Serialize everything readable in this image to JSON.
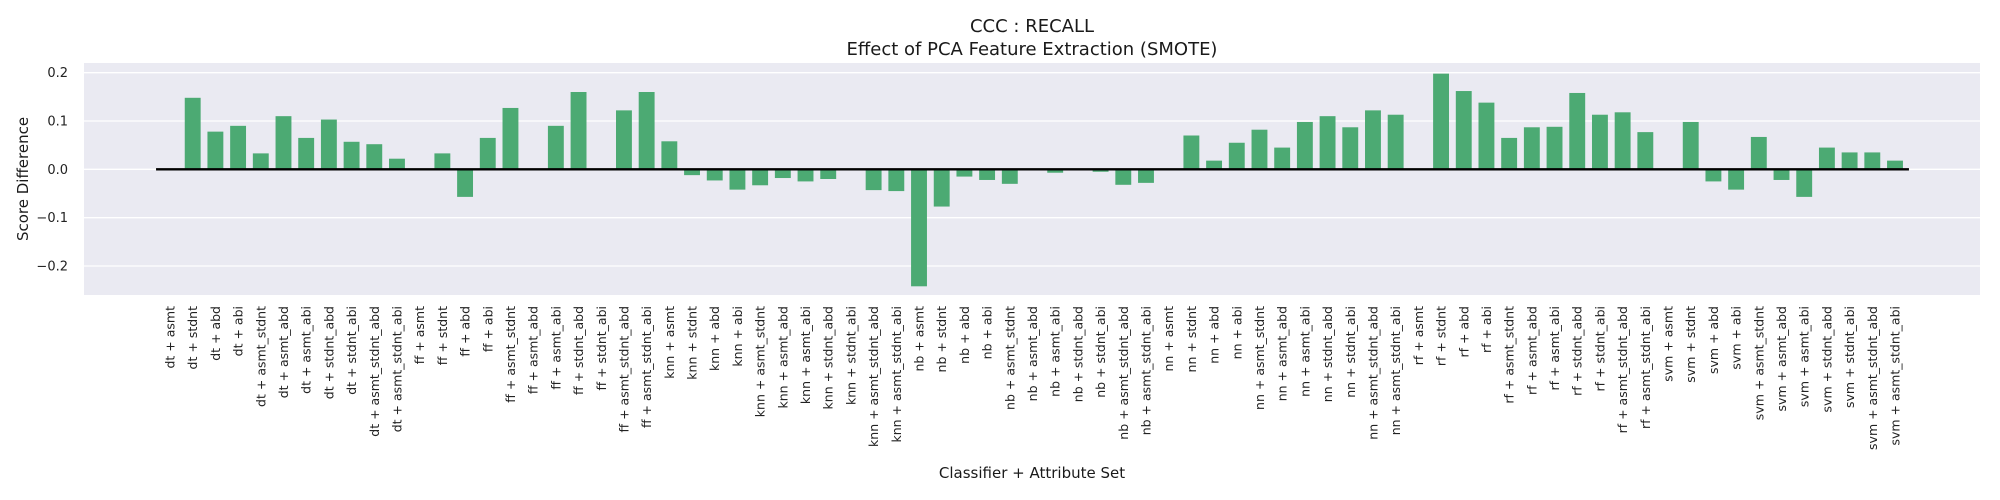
{
  "chart_data": {
    "type": "bar",
    "title": "CCC : RECALL",
    "subtitle": "Effect of PCA Feature Extraction (SMOTE)",
    "xlabel": "Classifier + Attribute Set",
    "ylabel": "Score Difference",
    "ylim": [
      -0.26,
      0.22
    ],
    "yticks": [
      -0.2,
      -0.1,
      0.0,
      0.1,
      0.2
    ],
    "ytick_labels": [
      "−0.2",
      "−0.1",
      "0.0",
      "0.1",
      "0.2"
    ],
    "grid": true,
    "legend": "none",
    "colors": {
      "bar": "#4caa73",
      "background": "#eaeaf2",
      "grid": "#ffffff",
      "zero_line": "#000000"
    },
    "categories": [
      "dt + asmt",
      "dt + stdnt",
      "dt + abd",
      "dt + abi",
      "dt + asmt_stdnt",
      "dt + asmt_abd",
      "dt + asmt_abi",
      "dt + stdnt_abd",
      "dt + stdnt_abi",
      "dt + asmt_stdnt_abd",
      "dt + asmt_stdnt_abi",
      "ff + asmt",
      "ff + stdnt",
      "ff + abd",
      "ff + abi",
      "ff + asmt_stdnt",
      "ff + asmt_abd",
      "ff + asmt_abi",
      "ff + stdnt_abd",
      "ff + stdnt_abi",
      "ff + asmt_stdnt_abd",
      "ff + asmt_stdnt_abi",
      "knn + asmt",
      "knn + stdnt",
      "knn + abd",
      "knn + abi",
      "knn + asmt_stdnt",
      "knn + asmt_abd",
      "knn + asmt_abi",
      "knn + stdnt_abd",
      "knn + stdnt_abi",
      "knn + asmt_stdnt_abd",
      "knn + asmt_stdnt_abi",
      "nb + asmt",
      "nb + stdnt",
      "nb + abd",
      "nb + abi",
      "nb + asmt_stdnt",
      "nb + asmt_abd",
      "nb + asmt_abi",
      "nb + stdnt_abd",
      "nb + stdnt_abi",
      "nb + asmt_stdnt_abd",
      "nb + asmt_stdnt_abi",
      "nn + asmt",
      "nn + stdnt",
      "nn + abd",
      "nn + abi",
      "nn + asmt_stdnt",
      "nn + asmt_abd",
      "nn + asmt_abi",
      "nn + stdnt_abd",
      "nn + stdnt_abi",
      "nn + asmt_stdnt_abd",
      "nn + asmt_stdnt_abi",
      "rf + asmt",
      "rf + stdnt",
      "rf + abd",
      "rf + abi",
      "rf + asmt_stdnt",
      "rf + asmt_abd",
      "rf + asmt_abi",
      "rf + stdnt_abd",
      "rf + stdnt_abi",
      "rf + asmt_stdnt_abd",
      "rf + asmt_stdnt_abi",
      "svm + asmt",
      "svm + stdnt",
      "svm + abd",
      "svm + abi",
      "svm + asmt_stdnt",
      "svm + asmt_abd",
      "svm + asmt_abi",
      "svm + stdnt_abd",
      "svm + stdnt_abi",
      "svm + asmt_stdnt_abd",
      "svm + asmt_stdnt_abi"
    ],
    "values": [
      0.0,
      0.148,
      0.078,
      0.09,
      0.033,
      0.11,
      0.065,
      0.103,
      0.057,
      0.052,
      0.022,
      0.0,
      0.033,
      -0.057,
      0.065,
      0.127,
      0.0,
      0.09,
      0.16,
      0.0,
      0.122,
      0.16,
      0.058,
      -0.012,
      -0.023,
      -0.042,
      -0.033,
      -0.018,
      -0.025,
      -0.02,
      0.0,
      -0.043,
      -0.045,
      -0.242,
      -0.077,
      -0.015,
      -0.022,
      -0.03,
      0.0,
      -0.007,
      0.0,
      -0.005,
      -0.032,
      -0.028,
      0.0,
      0.07,
      0.018,
      0.055,
      0.082,
      0.045,
      0.098,
      0.11,
      0.087,
      0.122,
      0.113,
      0.0,
      0.198,
      0.162,
      0.138,
      0.065,
      0.087,
      0.088,
      0.158,
      0.113,
      0.118,
      0.077,
      0.0,
      0.098,
      -0.025,
      -0.042,
      0.067,
      -0.022,
      -0.057,
      0.045,
      0.035,
      0.035,
      0.018
    ]
  }
}
